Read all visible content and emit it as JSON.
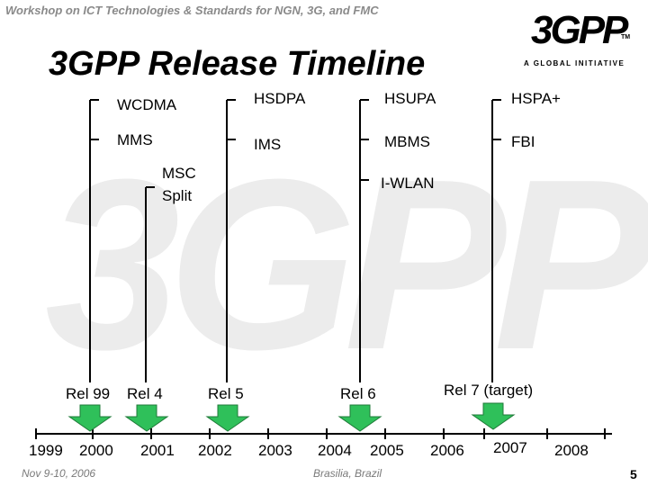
{
  "header": {
    "text": "Workshop on ICT Technologies & Standards for NGN, 3G, and FMC"
  },
  "logo": {
    "text": "3GPP",
    "tm": "TM",
    "tagline": "A GLOBAL INITIATIVE"
  },
  "watermark": {
    "text": "3GPP",
    "tagline": "A GLOBAL INITIATIVE",
    "tm": "TM"
  },
  "title": "3GPP Release Timeline",
  "features": {
    "wcdma": "WCDMA",
    "mms": "MMS",
    "msc_split_1": "MSC",
    "msc_split_2": "Split",
    "hsdpa": "HSDPA",
    "ims": "IMS",
    "hsupa": "HSUPA",
    "mbms": "MBMS",
    "iwlan": "I-WLAN",
    "hspa_plus": "HSPA+",
    "fbi": "FBI"
  },
  "releases": {
    "rel99": "Rel 99",
    "rel4": "Rel 4",
    "rel5": "Rel 5",
    "rel6": "Rel 6",
    "rel7": "Rel 7 (target)"
  },
  "years": [
    "1999",
    "2000",
    "2001",
    "2002",
    "2003",
    "2004",
    "2005",
    "2006",
    "2007",
    "2008"
  ],
  "footer": {
    "date": "Nov 9-10, 2006",
    "location": "Brasilia, Brazil",
    "page": "5"
  },
  "colors": {
    "arrow": "#2fc05a",
    "header": "#8a8a8a",
    "watermark": "#e6e6e6"
  }
}
